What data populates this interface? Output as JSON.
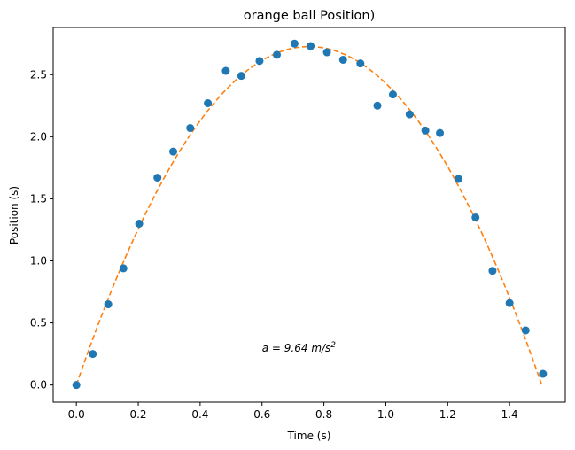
{
  "chart_data": {
    "type": "scatter",
    "title": "orange ball Position)",
    "xlabel": "Time (s)",
    "ylabel": "Position (s)",
    "xlim": [
      -0.075,
      1.58
    ],
    "ylim": [
      -0.138,
      2.88
    ],
    "xticks": [
      0.0,
      0.2,
      0.4,
      0.6,
      0.8,
      1.0,
      1.2,
      1.4
    ],
    "xtick_labels": [
      "0.0",
      "0.2",
      "0.4",
      "0.6",
      "0.8",
      "1.0",
      "1.2",
      "1.4"
    ],
    "yticks": [
      0.0,
      0.5,
      1.0,
      1.5,
      2.0,
      2.5
    ],
    "ytick_labels": [
      "0.0",
      "0.5",
      "1.0",
      "1.5",
      "2.0",
      "2.5"
    ],
    "grid": false,
    "series": [
      {
        "kind": "scatter",
        "color": "#1f77b4",
        "x": [
          0.0,
          0.053,
          0.103,
          0.152,
          0.203,
          0.262,
          0.313,
          0.368,
          0.425,
          0.483,
          0.533,
          0.592,
          0.648,
          0.705,
          0.757,
          0.81,
          0.862,
          0.918,
          0.973,
          1.023,
          1.077,
          1.128,
          1.175,
          1.235,
          1.29,
          1.345,
          1.4,
          1.452,
          1.508
        ],
        "y": [
          0.0,
          0.25,
          0.65,
          0.94,
          1.3,
          1.67,
          1.88,
          2.07,
          2.27,
          2.53,
          2.49,
          2.61,
          2.66,
          2.75,
          2.73,
          2.68,
          2.62,
          2.59,
          2.25,
          2.34,
          2.18,
          2.05,
          2.03,
          1.66,
          1.35,
          0.92,
          0.66,
          0.44,
          0.09
        ]
      },
      {
        "kind": "fit",
        "color": "#ff7f0e",
        "linestyle": "dashed",
        "equation": {
          "a": 9.64,
          "v0": 7.25,
          "x_start": 0.0,
          "x_end": 1.505
        }
      }
    ],
    "annotation": {
      "prefix": "a = 9.64 ",
      "unit_base": "m/s",
      "unit_exp": "2",
      "x": 0.6,
      "y": 0.27
    }
  }
}
